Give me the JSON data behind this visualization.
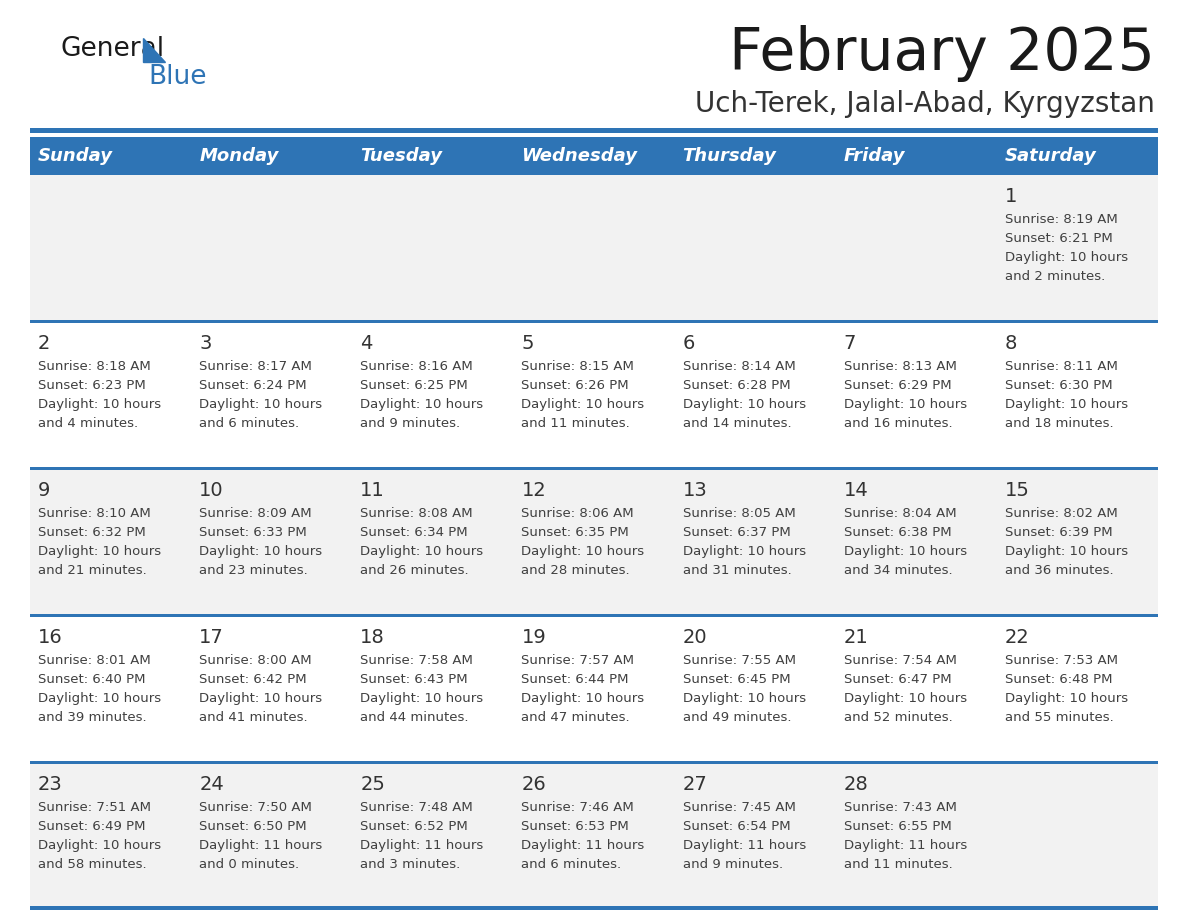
{
  "title": "February 2025",
  "subtitle": "Uch-Terek, Jalal-Abad, Kyrgyzstan",
  "days_of_week": [
    "Sunday",
    "Monday",
    "Tuesday",
    "Wednesday",
    "Thursday",
    "Friday",
    "Saturday"
  ],
  "header_bg": "#2E74B5",
  "header_text": "#FFFFFF",
  "row_bg_odd": "#F2F2F2",
  "row_bg_even": "#FFFFFF",
  "cell_text_color": "#404040",
  "day_num_color": "#333333",
  "title_color": "#1a1a1a",
  "subtitle_color": "#333333",
  "logo_general_color": "#1a1a1a",
  "logo_blue_color": "#2E74B5",
  "separator_color": "#2E74B5",
  "calendar_data": [
    [
      null,
      null,
      null,
      null,
      null,
      null,
      {
        "day": "1",
        "sunrise": "8:19 AM",
        "sunset": "6:21 PM",
        "daylight": "10 hours",
        "daylight2": "and 2 minutes."
      }
    ],
    [
      {
        "day": "2",
        "sunrise": "8:18 AM",
        "sunset": "6:23 PM",
        "daylight": "10 hours",
        "daylight2": "and 4 minutes."
      },
      {
        "day": "3",
        "sunrise": "8:17 AM",
        "sunset": "6:24 PM",
        "daylight": "10 hours",
        "daylight2": "and 6 minutes."
      },
      {
        "day": "4",
        "sunrise": "8:16 AM",
        "sunset": "6:25 PM",
        "daylight": "10 hours",
        "daylight2": "and 9 minutes."
      },
      {
        "day": "5",
        "sunrise": "8:15 AM",
        "sunset": "6:26 PM",
        "daylight": "10 hours",
        "daylight2": "and 11 minutes."
      },
      {
        "day": "6",
        "sunrise": "8:14 AM",
        "sunset": "6:28 PM",
        "daylight": "10 hours",
        "daylight2": "and 14 minutes."
      },
      {
        "day": "7",
        "sunrise": "8:13 AM",
        "sunset": "6:29 PM",
        "daylight": "10 hours",
        "daylight2": "and 16 minutes."
      },
      {
        "day": "8",
        "sunrise": "8:11 AM",
        "sunset": "6:30 PM",
        "daylight": "10 hours",
        "daylight2": "and 18 minutes."
      }
    ],
    [
      {
        "day": "9",
        "sunrise": "8:10 AM",
        "sunset": "6:32 PM",
        "daylight": "10 hours",
        "daylight2": "and 21 minutes."
      },
      {
        "day": "10",
        "sunrise": "8:09 AM",
        "sunset": "6:33 PM",
        "daylight": "10 hours",
        "daylight2": "and 23 minutes."
      },
      {
        "day": "11",
        "sunrise": "8:08 AM",
        "sunset": "6:34 PM",
        "daylight": "10 hours",
        "daylight2": "and 26 minutes."
      },
      {
        "day": "12",
        "sunrise": "8:06 AM",
        "sunset": "6:35 PM",
        "daylight": "10 hours",
        "daylight2": "and 28 minutes."
      },
      {
        "day": "13",
        "sunrise": "8:05 AM",
        "sunset": "6:37 PM",
        "daylight": "10 hours",
        "daylight2": "and 31 minutes."
      },
      {
        "day": "14",
        "sunrise": "8:04 AM",
        "sunset": "6:38 PM",
        "daylight": "10 hours",
        "daylight2": "and 34 minutes."
      },
      {
        "day": "15",
        "sunrise": "8:02 AM",
        "sunset": "6:39 PM",
        "daylight": "10 hours",
        "daylight2": "and 36 minutes."
      }
    ],
    [
      {
        "day": "16",
        "sunrise": "8:01 AM",
        "sunset": "6:40 PM",
        "daylight": "10 hours",
        "daylight2": "and 39 minutes."
      },
      {
        "day": "17",
        "sunrise": "8:00 AM",
        "sunset": "6:42 PM",
        "daylight": "10 hours",
        "daylight2": "and 41 minutes."
      },
      {
        "day": "18",
        "sunrise": "7:58 AM",
        "sunset": "6:43 PM",
        "daylight": "10 hours",
        "daylight2": "and 44 minutes."
      },
      {
        "day": "19",
        "sunrise": "7:57 AM",
        "sunset": "6:44 PM",
        "daylight": "10 hours",
        "daylight2": "and 47 minutes."
      },
      {
        "day": "20",
        "sunrise": "7:55 AM",
        "sunset": "6:45 PM",
        "daylight": "10 hours",
        "daylight2": "and 49 minutes."
      },
      {
        "day": "21",
        "sunrise": "7:54 AM",
        "sunset": "6:47 PM",
        "daylight": "10 hours",
        "daylight2": "and 52 minutes."
      },
      {
        "day": "22",
        "sunrise": "7:53 AM",
        "sunset": "6:48 PM",
        "daylight": "10 hours",
        "daylight2": "and 55 minutes."
      }
    ],
    [
      {
        "day": "23",
        "sunrise": "7:51 AM",
        "sunset": "6:49 PM",
        "daylight": "10 hours",
        "daylight2": "and 58 minutes."
      },
      {
        "day": "24",
        "sunrise": "7:50 AM",
        "sunset": "6:50 PM",
        "daylight": "11 hours",
        "daylight2": "and 0 minutes."
      },
      {
        "day": "25",
        "sunrise": "7:48 AM",
        "sunset": "6:52 PM",
        "daylight": "11 hours",
        "daylight2": "and 3 minutes."
      },
      {
        "day": "26",
        "sunrise": "7:46 AM",
        "sunset": "6:53 PM",
        "daylight": "11 hours",
        "daylight2": "and 6 minutes."
      },
      {
        "day": "27",
        "sunrise": "7:45 AM",
        "sunset": "6:54 PM",
        "daylight": "11 hours",
        "daylight2": "and 9 minutes."
      },
      {
        "day": "28",
        "sunrise": "7:43 AM",
        "sunset": "6:55 PM",
        "daylight": "11 hours",
        "daylight2": "and 11 minutes."
      },
      null
    ]
  ]
}
